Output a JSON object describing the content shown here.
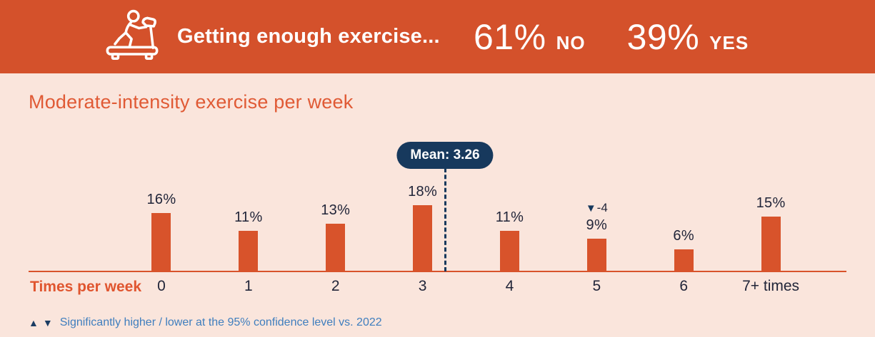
{
  "header": {
    "title": "Getting enough exercise...",
    "stats": [
      {
        "value": "61%",
        "label": "NO"
      },
      {
        "value": "39%",
        "label": "YES"
      }
    ]
  },
  "section": {
    "title": "Moderate-intensity exercise per week"
  },
  "chart_data": {
    "type": "bar",
    "title": "Moderate-intensity exercise per week",
    "xlabel": "Times per week",
    "ylabel": "",
    "unit": "%",
    "categories": [
      "0",
      "1",
      "2",
      "3",
      "4",
      "5",
      "6",
      "7+ times"
    ],
    "values": [
      16,
      11,
      13,
      18,
      11,
      9,
      6,
      15
    ],
    "ylim": [
      0,
      20
    ],
    "grid": false,
    "legend": false,
    "mean": 3.26,
    "mean_label": "Mean: 3.26",
    "bar_color": "#D8532B",
    "significance": [
      null,
      null,
      null,
      null,
      null,
      {
        "direction": "down",
        "marker": "▼",
        "delta": "-4"
      },
      null,
      null
    ]
  },
  "footnote": {
    "marker_up": "▲",
    "marker_down": "▼",
    "text": "Significantly higher / lower at the 95% confidence level vs. 2022"
  },
  "colors": {
    "banner": "#D4512B",
    "background": "#FAE5DC",
    "bar": "#D8532B",
    "accent_orange": "#E05A35",
    "navy": "#17395D",
    "label_dark": "#212539",
    "footnote_blue": "#3F7EBE"
  }
}
